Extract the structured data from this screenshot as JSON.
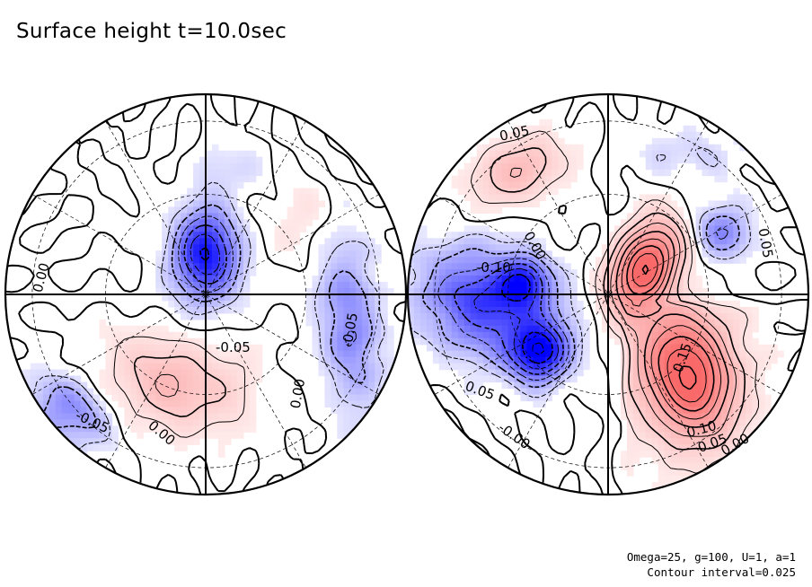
{
  "chart_data": {
    "type": "contour",
    "title": "Surface height t=10.0sec",
    "parameters_line": "Omega=25, g=100, U=1, a=1",
    "contour_interval_line": "Contour interval=0.025",
    "contour_interval": 0.025,
    "hemispheres": [
      {
        "name": "left-hemisphere",
        "contour_labels": [
          "0.00",
          "-0.05",
          "-0.05",
          "0.00",
          "-0.05",
          "0.00"
        ],
        "features": [
          {
            "kind": "low",
            "value": -0.15
          },
          {
            "kind": "high",
            "value": 0.075
          },
          {
            "kind": "low",
            "value": -0.075
          },
          {
            "kind": "low",
            "value": -0.075
          },
          {
            "kind": "high",
            "value": 0.025
          },
          {
            "kind": "low",
            "value": -0.025
          }
        ]
      },
      {
        "name": "right-hemisphere",
        "contour_labels": [
          "0.05",
          "0.00",
          "-0.10",
          "0.05",
          "-0.00",
          "0.15",
          "0.10",
          "0.05",
          "0.00",
          "0.05"
        ],
        "features": [
          {
            "kind": "high",
            "value": 0.075
          },
          {
            "kind": "low",
            "value": -0.1
          },
          {
            "kind": "low",
            "value": -0.15
          },
          {
            "kind": "low",
            "value": -0.125
          },
          {
            "kind": "high",
            "value": 0.2
          },
          {
            "kind": "low",
            "value": -0.075
          },
          {
            "kind": "high",
            "value": 0.175
          },
          {
            "kind": "low",
            "value": -0.025
          }
        ]
      }
    ]
  }
}
